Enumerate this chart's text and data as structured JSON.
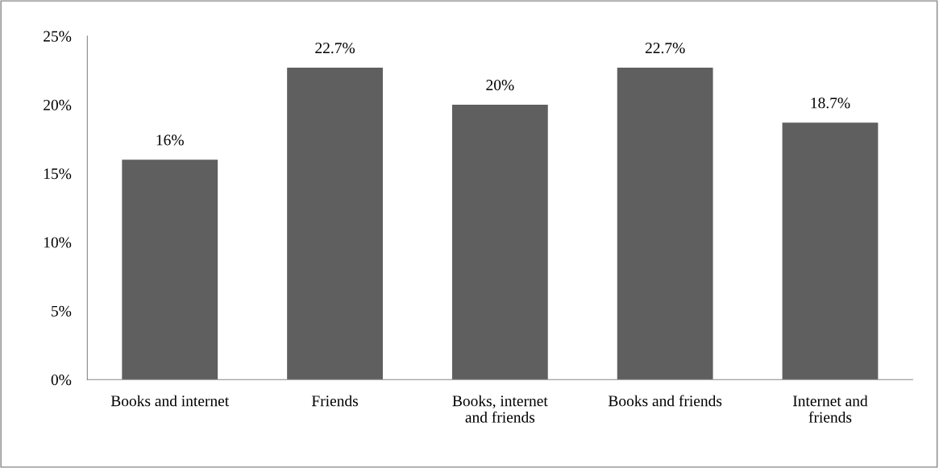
{
  "chart_data": {
    "type": "bar",
    "categories": [
      "Books and internet",
      "Friends",
      "Books, internet\nand friends",
      "Books and friends",
      "Internet and\nfriends"
    ],
    "values": [
      16,
      22.7,
      20,
      22.7,
      18.7
    ],
    "value_labels": [
      "16%",
      "22.7%",
      "20%",
      "22.7%",
      "18.7%"
    ],
    "color": "#5f5f5f",
    "ylim": [
      0,
      25
    ],
    "yticks": [
      {
        "value": 0,
        "label": "0%"
      },
      {
        "value": 5,
        "label": "5%"
      },
      {
        "value": 10,
        "label": "10%"
      },
      {
        "value": 15,
        "label": "15%"
      },
      {
        "value": 20,
        "label": "20%"
      },
      {
        "value": 25,
        "label": "25%"
      }
    ],
    "grid": false,
    "legend": false
  }
}
